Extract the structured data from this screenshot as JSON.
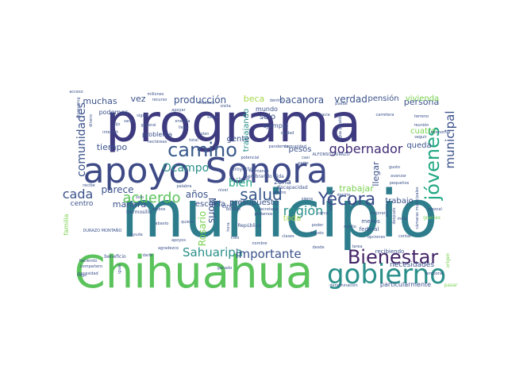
{
  "words": [
    {
      "text": "municipio",
      "color": "#2e7d8c"
    },
    {
      "text": "programa",
      "color": "#3e3a7f"
    },
    {
      "text": "Chihuahua",
      "color": "#5bc35b"
    },
    {
      "text": "apoyo",
      "color": "#3d4a86"
    },
    {
      "text": "Sonora",
      "color": "#3f4a88"
    },
    {
      "text": "gobierno",
      "color": "#2a8f8a"
    },
    {
      "text": "Bienestar",
      "color": "#432466"
    },
    {
      "text": "camino",
      "color": "#3a5a8c"
    },
    {
      "text": "jóvenes",
      "color": "#22a884"
    },
    {
      "text": "Yécora",
      "color": "#3b4e8a"
    },
    {
      "text": "salud",
      "color": "#38598c"
    },
    {
      "text": "gobernador",
      "color": "#3f2a74"
    },
    {
      "text": "Sahuaripa",
      "color": "#2a8f8a"
    },
    {
      "text": "importante",
      "color": "#3b528b"
    },
    {
      "text": "comunidades",
      "color": "#3b528b"
    },
    {
      "text": "municipal",
      "color": "#3b528b"
    },
    {
      "text": "acuerdo",
      "color": "#5bc35b"
    },
    {
      "text": "región",
      "color": "#2a8f8a"
    },
    {
      "text": "cada",
      "color": "#3b528b"
    },
    {
      "text": "bien",
      "color": "#22a884"
    },
    {
      "text": "Ocampo",
      "color": "#2a8f8a"
    },
    {
      "text": "producción",
      "color": "#3b528b"
    },
    {
      "text": "bacanora",
      "color": "#3b528b"
    },
    {
      "text": "verdad",
      "color": "#3b528b"
    },
    {
      "text": "muchas",
      "color": "#3b528b"
    },
    {
      "text": "Moris",
      "color": "#3b528b"
    },
    {
      "text": "Rosario",
      "color": "#7ad151"
    },
    {
      "text": "parece",
      "color": "#3b528b"
    },
    {
      "text": "años",
      "color": "#3b528b"
    },
    {
      "text": "trabajar",
      "color": "#7ad151"
    },
    {
      "text": "persona",
      "color": "#3b528b"
    },
    {
      "text": "tiempo",
      "color": "#3b528b"
    },
    {
      "text": "manera",
      "color": "#3b528b"
    },
    {
      "text": "beca",
      "color": "#a6d84a"
    },
    {
      "text": "vez",
      "color": "#3b528b"
    },
    {
      "text": "trabajando",
      "color": "#2a8f8a"
    },
    {
      "text": "llegar",
      "color": "#3b528b"
    },
    {
      "text": "trabajo",
      "color": "#3b528b"
    },
    {
      "text": "gente",
      "color": "#3b528b"
    },
    {
      "text": "queda",
      "color": "#3b528b"
    },
    {
      "text": "toda",
      "color": "#a6d84a"
    },
    {
      "text": "necesidades",
      "color": "#3b528b"
    },
    {
      "text": "cuatro",
      "color": "#7ad151"
    },
    {
      "text": "vivienda",
      "color": "#7ad151"
    },
    {
      "text": "pensión",
      "color": "#3b528b"
    },
    {
      "text": "sólo",
      "color": "#3b528b"
    },
    {
      "text": "pesos",
      "color": "#3b528b"
    },
    {
      "text": "escuela",
      "color": "#3b528b"
    },
    {
      "text": "centro",
      "color": "#3b528b"
    },
    {
      "text": "presupuesto",
      "color": "#3b528b"
    },
    {
      "text": "zona",
      "color": "#3b528b"
    },
    {
      "text": "problema",
      "color": "#3b528b"
    },
    {
      "text": "podemos",
      "color": "#3b528b"
    },
    {
      "text": "ejemplo",
      "color": "#3b528b"
    },
    {
      "text": "mundo",
      "color": "#3b528b"
    },
    {
      "text": "familia",
      "color": "#7ad151"
    },
    {
      "text": "particularmente",
      "color": "#3b528b"
    },
    {
      "text": "recibiendo",
      "color": "#3b528b"
    },
    {
      "text": "federal",
      "color": "#3b528b"
    },
    {
      "text": "menos",
      "color": "#3b528b"
    },
    {
      "text": "cinco",
      "color": "#3b528b"
    },
    {
      "text": "Hermosillo",
      "color": "#3b528b"
    },
    {
      "text": "beneficio",
      "color": "#3b528b"
    },
    {
      "text": "obra",
      "color": "#3b528b"
    },
    {
      "text": "carretera",
      "color": "#3b528b"
    },
    {
      "text": "hermanos",
      "color": "#3b528b"
    },
    {
      "text": "comunidad",
      "color": "#3b528b"
    },
    {
      "text": "potencial",
      "color": "#3b528b"
    },
    {
      "text": "proyecto",
      "color": "#3b528b"
    },
    {
      "text": "discapacidad",
      "color": "#3b528b"
    },
    {
      "text": "Sembrando Vida",
      "color": "#3b528b"
    },
    {
      "text": "República",
      "color": "#3b528b"
    },
    {
      "text": "gracias",
      "color": "#7ad151"
    },
    {
      "text": "origen",
      "color": "#7ad151"
    },
    {
      "text": "pasar",
      "color": "#7ad151"
    },
    {
      "text": "Banco",
      "color": "#3b528b"
    },
    {
      "text": "compañero",
      "color": "#3b528b"
    },
    {
      "text": "recibe",
      "color": "#3b528b"
    },
    {
      "text": "internet",
      "color": "#3b528b"
    },
    {
      "text": "millones",
      "color": "#3b528b"
    },
    {
      "text": "acceso",
      "color": "#3b528b"
    },
    {
      "text": "recurso",
      "color": "#3b528b"
    },
    {
      "text": "médicos",
      "color": "#3b528b"
    },
    {
      "text": "general",
      "color": "#3b528b"
    },
    {
      "text": "energía",
      "color": "#3b528b"
    },
    {
      "text": "hectáreas",
      "color": "#3b528b"
    },
    {
      "text": "pandemia",
      "color": "#3b528b"
    },
    {
      "text": "ALFONSO DURAZO",
      "color": "#3b528b"
    },
    {
      "text": "agua potable",
      "color": "#3b528b"
    },
    {
      "text": "terreno",
      "color": "#3b528b"
    },
    {
      "text": "reunión",
      "color": "#3b528b"
    },
    {
      "text": "seguir",
      "color": "#3b528b"
    },
    {
      "text": "gusto",
      "color": "#3b528b"
    },
    {
      "text": "avanzar",
      "color": "#3b528b"
    },
    {
      "text": "pequeños",
      "color": "#3b528b"
    },
    {
      "text": "cámaras municipales",
      "color": "#3b528b"
    },
    {
      "text": "mezcal",
      "color": "#3b528b"
    },
    {
      "text": "meta",
      "color": "#3b528b"
    },
    {
      "text": "cerca",
      "color": "#3b528b"
    },
    {
      "text": "decirle",
      "color": "#3b528b"
    },
    {
      "text": "mejorar",
      "color": "#3b528b"
    },
    {
      "text": "medio",
      "color": "#3b528b"
    },
    {
      "text": "opciones",
      "color": "#3b528b"
    },
    {
      "text": "contar",
      "color": "#3b528b"
    },
    {
      "text": "poder",
      "color": "#3b528b"
    },
    {
      "text": "través",
      "color": "#3b528b"
    },
    {
      "text": "denominación",
      "color": "#3b528b"
    },
    {
      "text": "sierra",
      "color": "#3b528b"
    },
    {
      "text": "nivel",
      "color": "#3b528b"
    },
    {
      "text": "secretaria",
      "color": "#3b528b"
    },
    {
      "text": "podamos",
      "color": "#3b528b"
    },
    {
      "text": "hora",
      "color": "#3b528b"
    },
    {
      "text": "ganado",
      "color": "#3b528b"
    },
    {
      "text": "haciendo",
      "color": "#3b528b"
    },
    {
      "text": "necesidad",
      "color": "#3b528b"
    },
    {
      "text": "darle",
      "color": "#3b528b"
    },
    {
      "text": "igual",
      "color": "#3b528b"
    },
    {
      "text": "ayuda",
      "color": "#3b528b"
    },
    {
      "text": "DURAZO MONTAÑO",
      "color": "#3b528b"
    },
    {
      "text": "finalmente",
      "color": "#3b528b"
    },
    {
      "text": "hijo",
      "color": "#3b528b"
    },
    {
      "text": "apoyar",
      "color": "#3b528b"
    },
    {
      "text": "llega",
      "color": "#3b528b"
    },
    {
      "text": "plan",
      "color": "#3b528b"
    },
    {
      "text": "casi",
      "color": "#3b528b"
    },
    {
      "text": "mismo",
      "color": "#3b528b"
    },
    {
      "text": "parte",
      "color": "#3b528b"
    },
    {
      "text": "dentro",
      "color": "#3b528b"
    },
    {
      "text": "hacia",
      "color": "#3b528b"
    },
    {
      "text": "escrito",
      "color": "#3b528b"
    },
    {
      "text": "después",
      "color": "#3b528b"
    },
    {
      "text": "economía",
      "color": "#3b528b"
    },
    {
      "text": "adelante",
      "color": "#3b528b"
    },
    {
      "text": "temporal",
      "color": "#3b528b"
    },
    {
      "text": "hago",
      "color": "#3b528b"
    },
    {
      "text": "quiero",
      "color": "#3b528b"
    },
    {
      "text": "ambos",
      "color": "#3b528b"
    },
    {
      "text": "palabra",
      "color": "#3b528b"
    },
    {
      "text": "bosque",
      "color": "#3b528b"
    },
    {
      "text": "abasto",
      "color": "#3b528b"
    },
    {
      "text": "solo",
      "color": "#3b528b"
    },
    {
      "text": "clases",
      "color": "#3b528b"
    },
    {
      "text": "nombre",
      "color": "#3b528b"
    },
    {
      "text": "creo",
      "color": "#3b528b"
    },
    {
      "text": "tarea",
      "color": "#3b528b"
    },
    {
      "text": "desde",
      "color": "#3b528b"
    },
    {
      "text": "apoyos",
      "color": "#3b528b"
    },
    {
      "text": "agradezco",
      "color": "#3b528b"
    },
    {
      "text": "hacer",
      "color": "#3b528b"
    },
    {
      "text": "visita",
      "color": "#3b528b"
    },
    {
      "text": "ciudad",
      "color": "#3b528b"
    },
    {
      "text": "sigue",
      "color": "#3b528b"
    },
    {
      "text": "santo",
      "color": "#3b528b"
    },
    {
      "text": "dinero",
      "color": "#3b528b"
    },
    {
      "text": "puede",
      "color": "#3b528b"
    },
    {
      "text": "tierra",
      "color": "#3b528b"
    },
    {
      "text": "total",
      "color": "#3b528b"
    }
  ]
}
